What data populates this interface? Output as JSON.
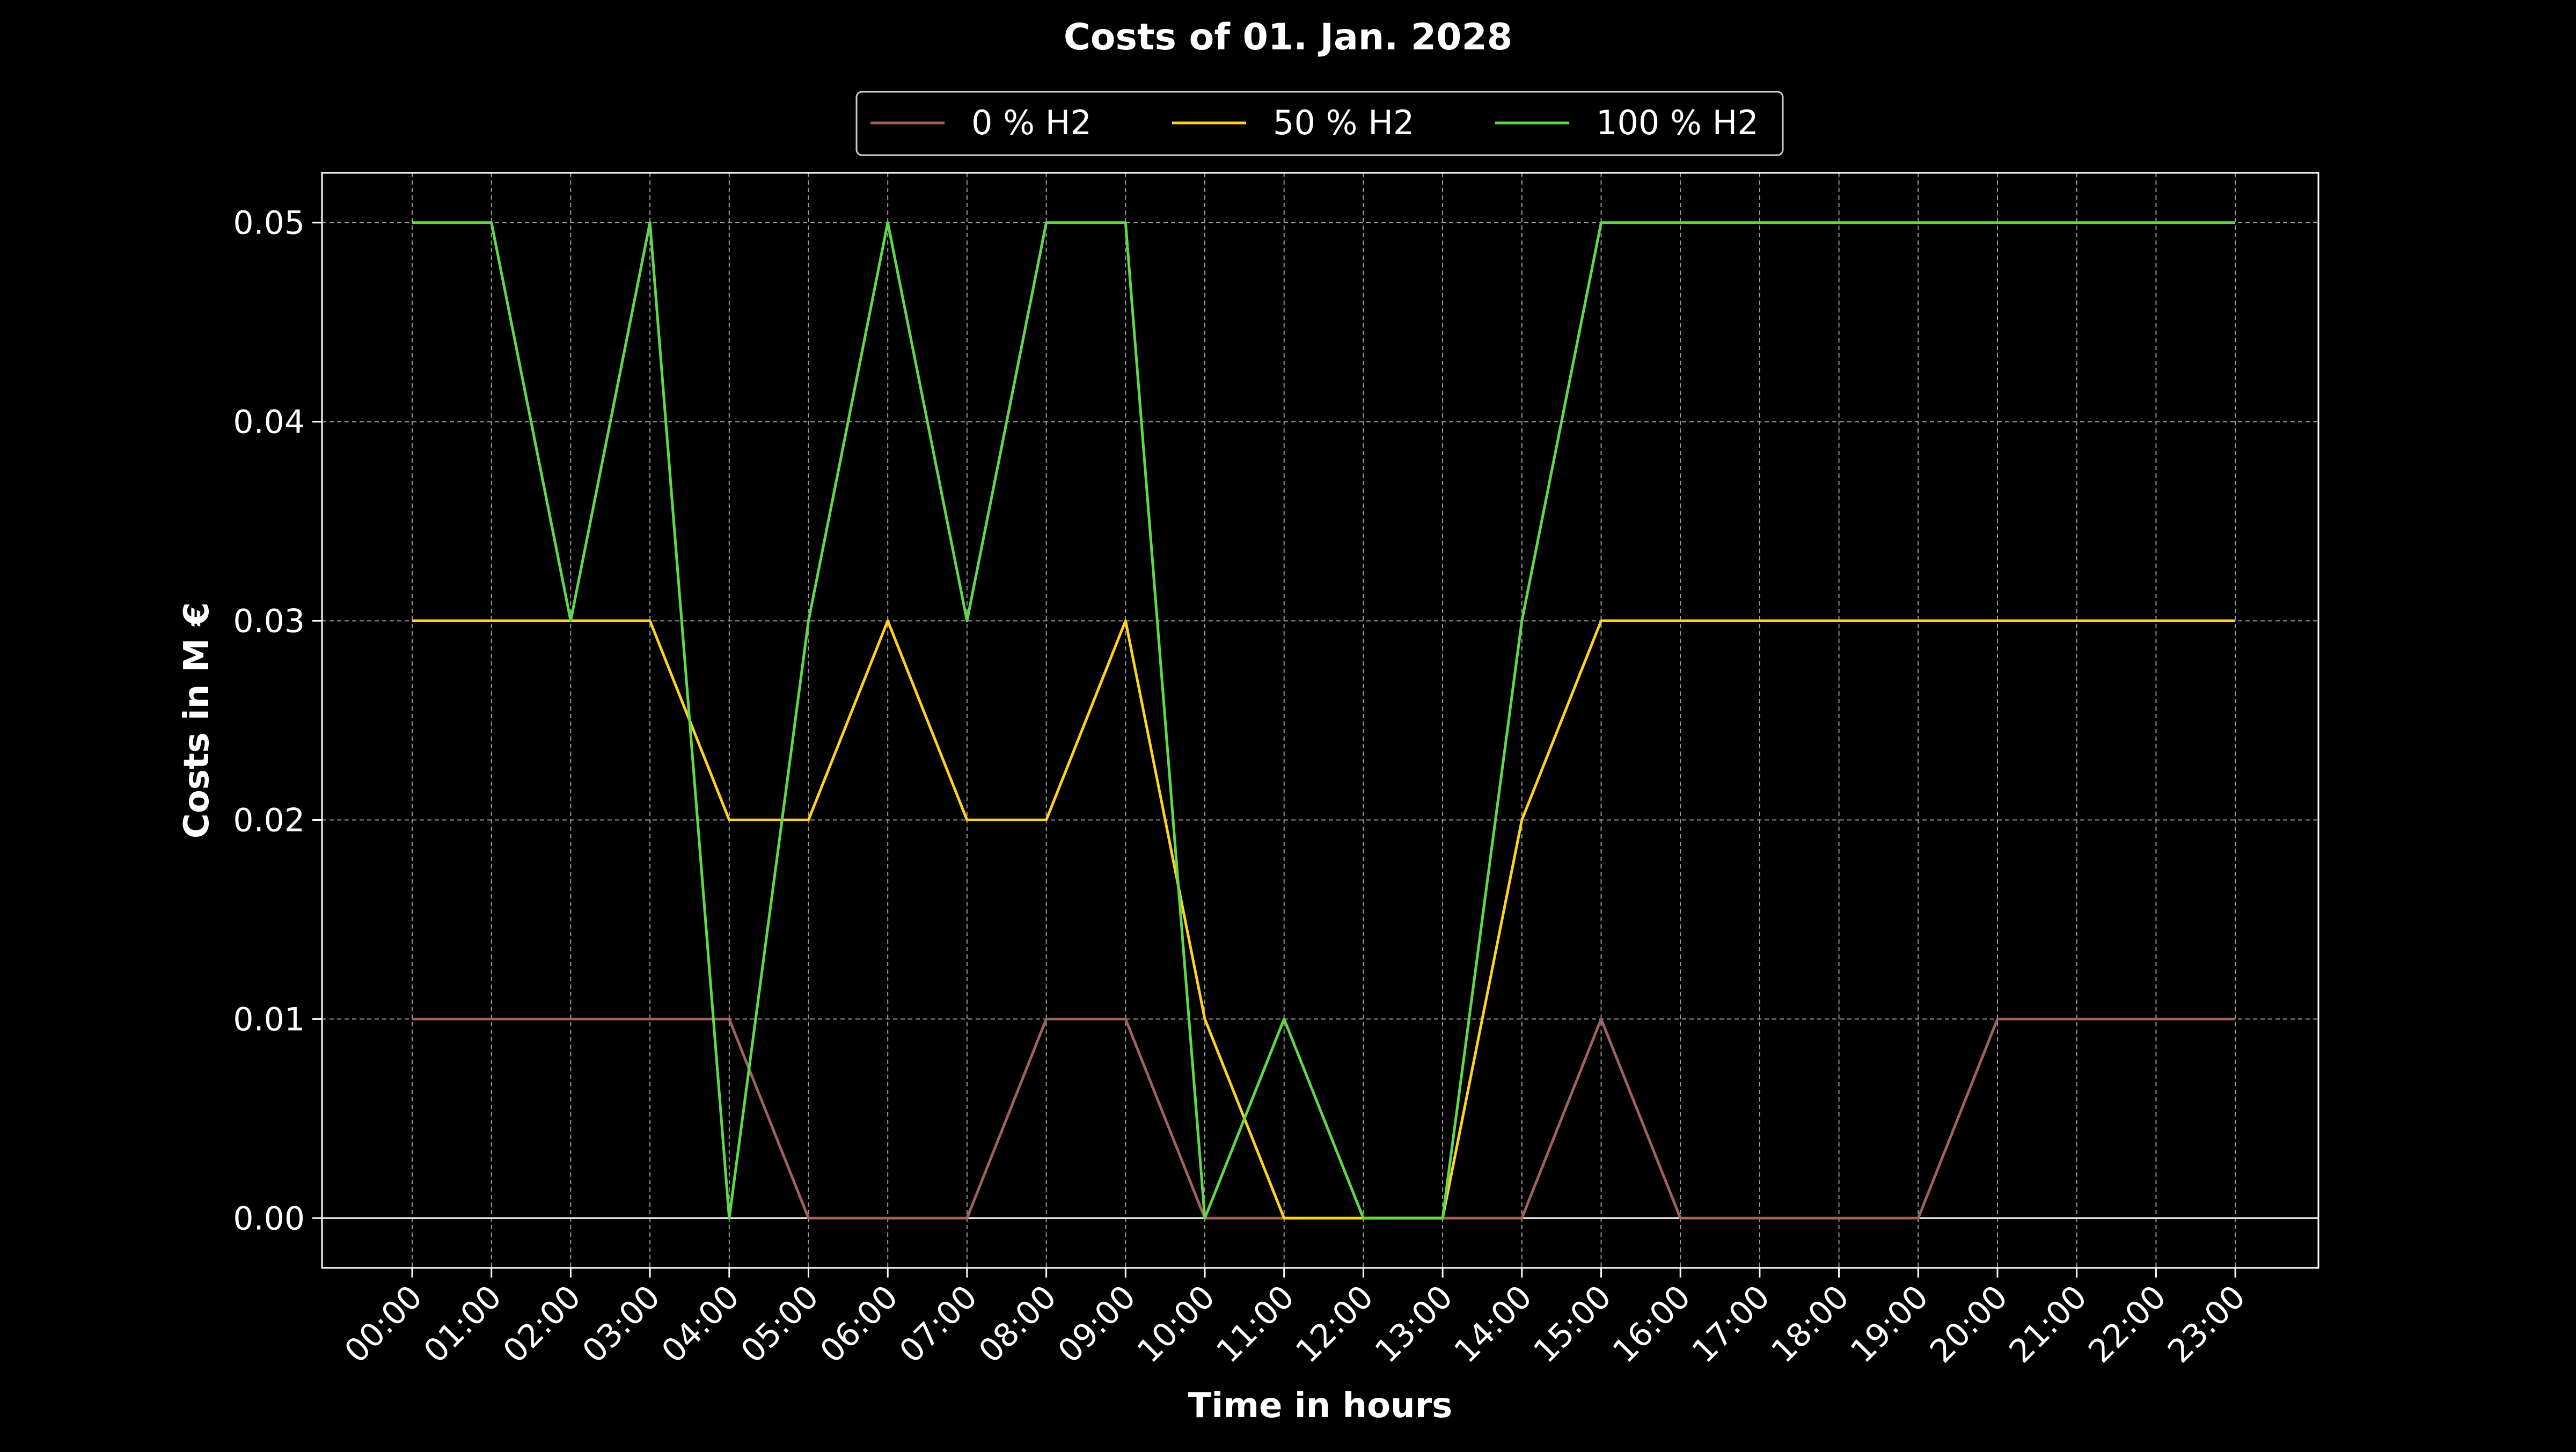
{
  "chart_data": {
    "type": "line",
    "title": "Costs of 01. Jan. 2028",
    "xlabel": "Time in hours",
    "ylabel": "Costs in M €",
    "categories": [
      "00:00",
      "01:00",
      "02:00",
      "03:00",
      "04:00",
      "05:00",
      "06:00",
      "07:00",
      "08:00",
      "09:00",
      "10:00",
      "11:00",
      "12:00",
      "13:00",
      "14:00",
      "15:00",
      "16:00",
      "17:00",
      "18:00",
      "19:00",
      "20:00",
      "21:00",
      "22:00",
      "23:00"
    ],
    "yticks": [
      "0.00",
      "0.01",
      "0.02",
      "0.03",
      "0.04",
      "0.05"
    ],
    "ylim": [
      -0.0025,
      0.0525
    ],
    "grid": true,
    "legend_position": "top-center",
    "series": [
      {
        "name": "0 % H2",
        "color": "#a0625a",
        "values": [
          0.01,
          0.01,
          0.01,
          0.01,
          0.01,
          0.0,
          0.0,
          0.0,
          0.01,
          0.01,
          0.0,
          0.0,
          0.0,
          0.0,
          0.0,
          0.01,
          0.0,
          0.0,
          0.0,
          0.0,
          0.01,
          0.01,
          0.01,
          0.01
        ]
      },
      {
        "name": "50 % H2",
        "color": "#ffd21f",
        "values": [
          0.03,
          0.03,
          0.03,
          0.03,
          0.02,
          0.02,
          0.03,
          0.02,
          0.02,
          0.03,
          0.01,
          0.0,
          0.0,
          0.0,
          0.02,
          0.03,
          0.03,
          0.03,
          0.03,
          0.03,
          0.03,
          0.03,
          0.03,
          0.03
        ]
      },
      {
        "name": "100 % H2",
        "color": "#5fd94a",
        "values": [
          0.05,
          0.05,
          0.03,
          0.05,
          0.0,
          0.03,
          0.05,
          0.03,
          0.05,
          0.05,
          0.0,
          0.01,
          0.0,
          0.0,
          0.03,
          0.05,
          0.05,
          0.05,
          0.05,
          0.05,
          0.05,
          0.05,
          0.05,
          0.05
        ]
      }
    ]
  }
}
